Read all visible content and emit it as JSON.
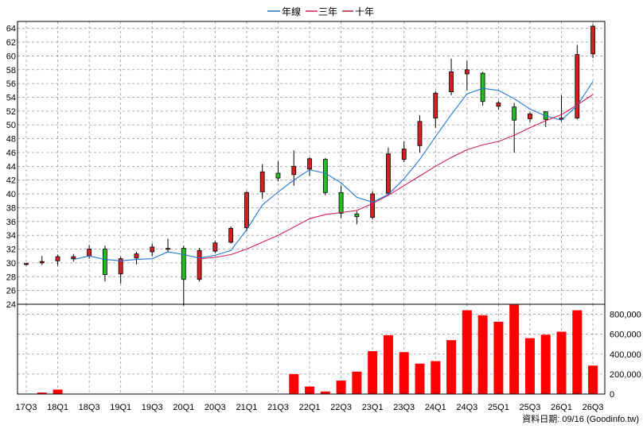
{
  "chart_data": {
    "type": "candlestick",
    "legend": [
      {
        "name": "年線",
        "color": "#1f77d4"
      },
      {
        "name": "三年",
        "color": "#d01c5c"
      },
      {
        "name": "十年",
        "color": "#b01c3c"
      }
    ],
    "x_labels": [
      "17Q3",
      "18Q1",
      "18Q3",
      "19Q1",
      "19Q3",
      "20Q1",
      "20Q3",
      "21Q1",
      "21Q3",
      "22Q1",
      "22Q3",
      "23Q1",
      "23Q3",
      "24Q1",
      "24Q3",
      "25Q1",
      "25Q3",
      "26Q1",
      "26Q3"
    ],
    "price_ylim": [
      24,
      65
    ],
    "price_ticks": [
      24,
      26,
      28,
      30,
      32,
      34,
      36,
      38,
      40,
      42,
      44,
      46,
      48,
      50,
      52,
      54,
      56,
      58,
      60,
      62,
      64
    ],
    "volume_ylim": [
      0,
      900000
    ],
    "volume_ticks": [
      0,
      200000,
      400000,
      600000,
      800000
    ],
    "volume_tick_labels": [
      "0",
      "200,000",
      "400,000",
      "600,000",
      "800,000"
    ],
    "candles": [
      {
        "q": "17Q3",
        "o": 29.8,
        "h": 30.0,
        "l": 29.6,
        "c": 29.9
      },
      {
        "q": "17Q4",
        "o": 30.0,
        "h": 31.0,
        "l": 29.7,
        "c": 30.2
      },
      {
        "q": "18Q1",
        "o": 30.3,
        "h": 31.2,
        "l": 29.6,
        "c": 30.9
      },
      {
        "q": "18Q2",
        "o": 30.6,
        "h": 31.3,
        "l": 30.2,
        "c": 30.9
      },
      {
        "q": "18Q3",
        "o": 31.0,
        "h": 32.6,
        "l": 30.6,
        "c": 32.0
      },
      {
        "q": "18Q4",
        "o": 32.0,
        "h": 32.5,
        "l": 27.3,
        "c": 28.3
      },
      {
        "q": "19Q1",
        "o": 28.4,
        "h": 30.9,
        "l": 27.0,
        "c": 30.6
      },
      {
        "q": "19Q2",
        "o": 30.7,
        "h": 31.6,
        "l": 29.8,
        "c": 31.3
      },
      {
        "q": "19Q3",
        "o": 31.6,
        "h": 32.8,
        "l": 31.0,
        "c": 32.3
      },
      {
        "q": "19Q4",
        "o": 32.0,
        "h": 33.5,
        "l": 31.5,
        "c": 32.1
      },
      {
        "q": "20Q1",
        "o": 32.1,
        "h": 32.5,
        "l": 23.8,
        "c": 27.6
      },
      {
        "q": "20Q2",
        "o": 27.6,
        "h": 32.2,
        "l": 27.3,
        "c": 31.8
      },
      {
        "q": "20Q3",
        "o": 31.7,
        "h": 33.2,
        "l": 31.4,
        "c": 32.9
      },
      {
        "q": "20Q4",
        "o": 33.0,
        "h": 35.3,
        "l": 32.8,
        "c": 35.0
      },
      {
        "q": "21Q1",
        "o": 35.1,
        "h": 40.4,
        "l": 34.6,
        "c": 40.2
      },
      {
        "q": "21Q2",
        "o": 40.3,
        "h": 44.3,
        "l": 39.3,
        "c": 43.2
      },
      {
        "q": "21Q3",
        "o": 43.0,
        "h": 44.7,
        "l": 41.8,
        "c": 42.3
      },
      {
        "q": "21Q4",
        "o": 42.8,
        "h": 46.3,
        "l": 41.2,
        "c": 44.0
      },
      {
        "q": "22Q1",
        "o": 43.6,
        "h": 45.3,
        "l": 42.6,
        "c": 45.1
      },
      {
        "q": "22Q2",
        "o": 45.0,
        "h": 45.2,
        "l": 39.8,
        "c": 40.2
      },
      {
        "q": "22Q3",
        "o": 40.2,
        "h": 41.2,
        "l": 36.5,
        "c": 37.2
      },
      {
        "q": "22Q4",
        "o": 37.1,
        "h": 37.5,
        "l": 35.6,
        "c": 36.7
      },
      {
        "q": "23Q1",
        "o": 36.6,
        "h": 40.4,
        "l": 36.3,
        "c": 40.0
      },
      {
        "q": "23Q2",
        "o": 40.1,
        "h": 46.7,
        "l": 39.9,
        "c": 45.8
      },
      {
        "q": "23Q3",
        "o": 45.0,
        "h": 47.6,
        "l": 44.6,
        "c": 46.5
      },
      {
        "q": "23Q4",
        "o": 47.0,
        "h": 51.4,
        "l": 46.0,
        "c": 50.5
      },
      {
        "q": "24Q1",
        "o": 51.0,
        "h": 54.9,
        "l": 49.6,
        "c": 54.6
      },
      {
        "q": "24Q2",
        "o": 54.8,
        "h": 59.6,
        "l": 54.3,
        "c": 57.7
      },
      {
        "q": "24Q3",
        "o": 57.4,
        "h": 59.3,
        "l": 55.0,
        "c": 58.0
      },
      {
        "q": "24Q4",
        "o": 57.5,
        "h": 57.7,
        "l": 52.8,
        "c": 53.4
      },
      {
        "q": "25Q1",
        "o": 52.7,
        "h": 53.5,
        "l": 52.2,
        "c": 53.2
      },
      {
        "q": "25Q2",
        "o": 52.6,
        "h": 53.2,
        "l": 46.0,
        "c": 50.7
      },
      {
        "q": "25Q3",
        "o": 50.9,
        "h": 51.9,
        "l": 50.4,
        "c": 51.6
      },
      {
        "q": "25Q4",
        "o": 51.9,
        "h": 52.0,
        "l": 49.7,
        "c": 50.8
      },
      {
        "q": "26Q1",
        "o": 50.8,
        "h": 54.3,
        "l": 50.5,
        "c": 51.0
      },
      {
        "q": "26Q2",
        "o": 51.0,
        "h": 61.6,
        "l": 50.8,
        "c": 60.2
      },
      {
        "q": "26Q3",
        "o": 60.3,
        "h": 64.6,
        "l": 59.7,
        "c": 64.3
      }
    ],
    "ma_year": [
      null,
      null,
      null,
      30.5,
      31.0,
      30.5,
      30.3,
      30.5,
      30.6,
      31.6,
      31.2,
      30.7,
      31.1,
      31.8,
      34.8,
      38.4,
      40.3,
      42.0,
      43.5,
      43.0,
      41.6,
      39.5,
      38.8,
      39.9,
      42.2,
      45.0,
      48.3,
      51.5,
      54.5,
      55.3,
      55.0,
      53.8,
      52.3,
      51.3,
      50.7,
      52.8,
      56.3
    ],
    "ma_3y": [
      null,
      null,
      null,
      null,
      null,
      null,
      null,
      null,
      null,
      null,
      null,
      30.6,
      30.8,
      31.2,
      32.0,
      33.0,
      34.0,
      35.2,
      36.4,
      37.0,
      37.3,
      37.6,
      38.6,
      39.8,
      41.2,
      42.6,
      44.0,
      45.3,
      46.4,
      47.1,
      47.6,
      48.5,
      49.6,
      50.6,
      51.5,
      52.9,
      54.4
    ],
    "volumes": [
      0,
      15000,
      45000,
      0,
      0,
      0,
      0,
      0,
      0,
      0,
      0,
      0,
      0,
      0,
      0,
      0,
      0,
      200000,
      75000,
      25000,
      135000,
      225000,
      430000,
      590000,
      420000,
      305000,
      330000,
      540000,
      840000,
      790000,
      725000,
      895000,
      560000,
      595000,
      625000,
      840000,
      285000
    ],
    "footer": "資料日期: 09/16  (Goodinfo.tw)"
  }
}
